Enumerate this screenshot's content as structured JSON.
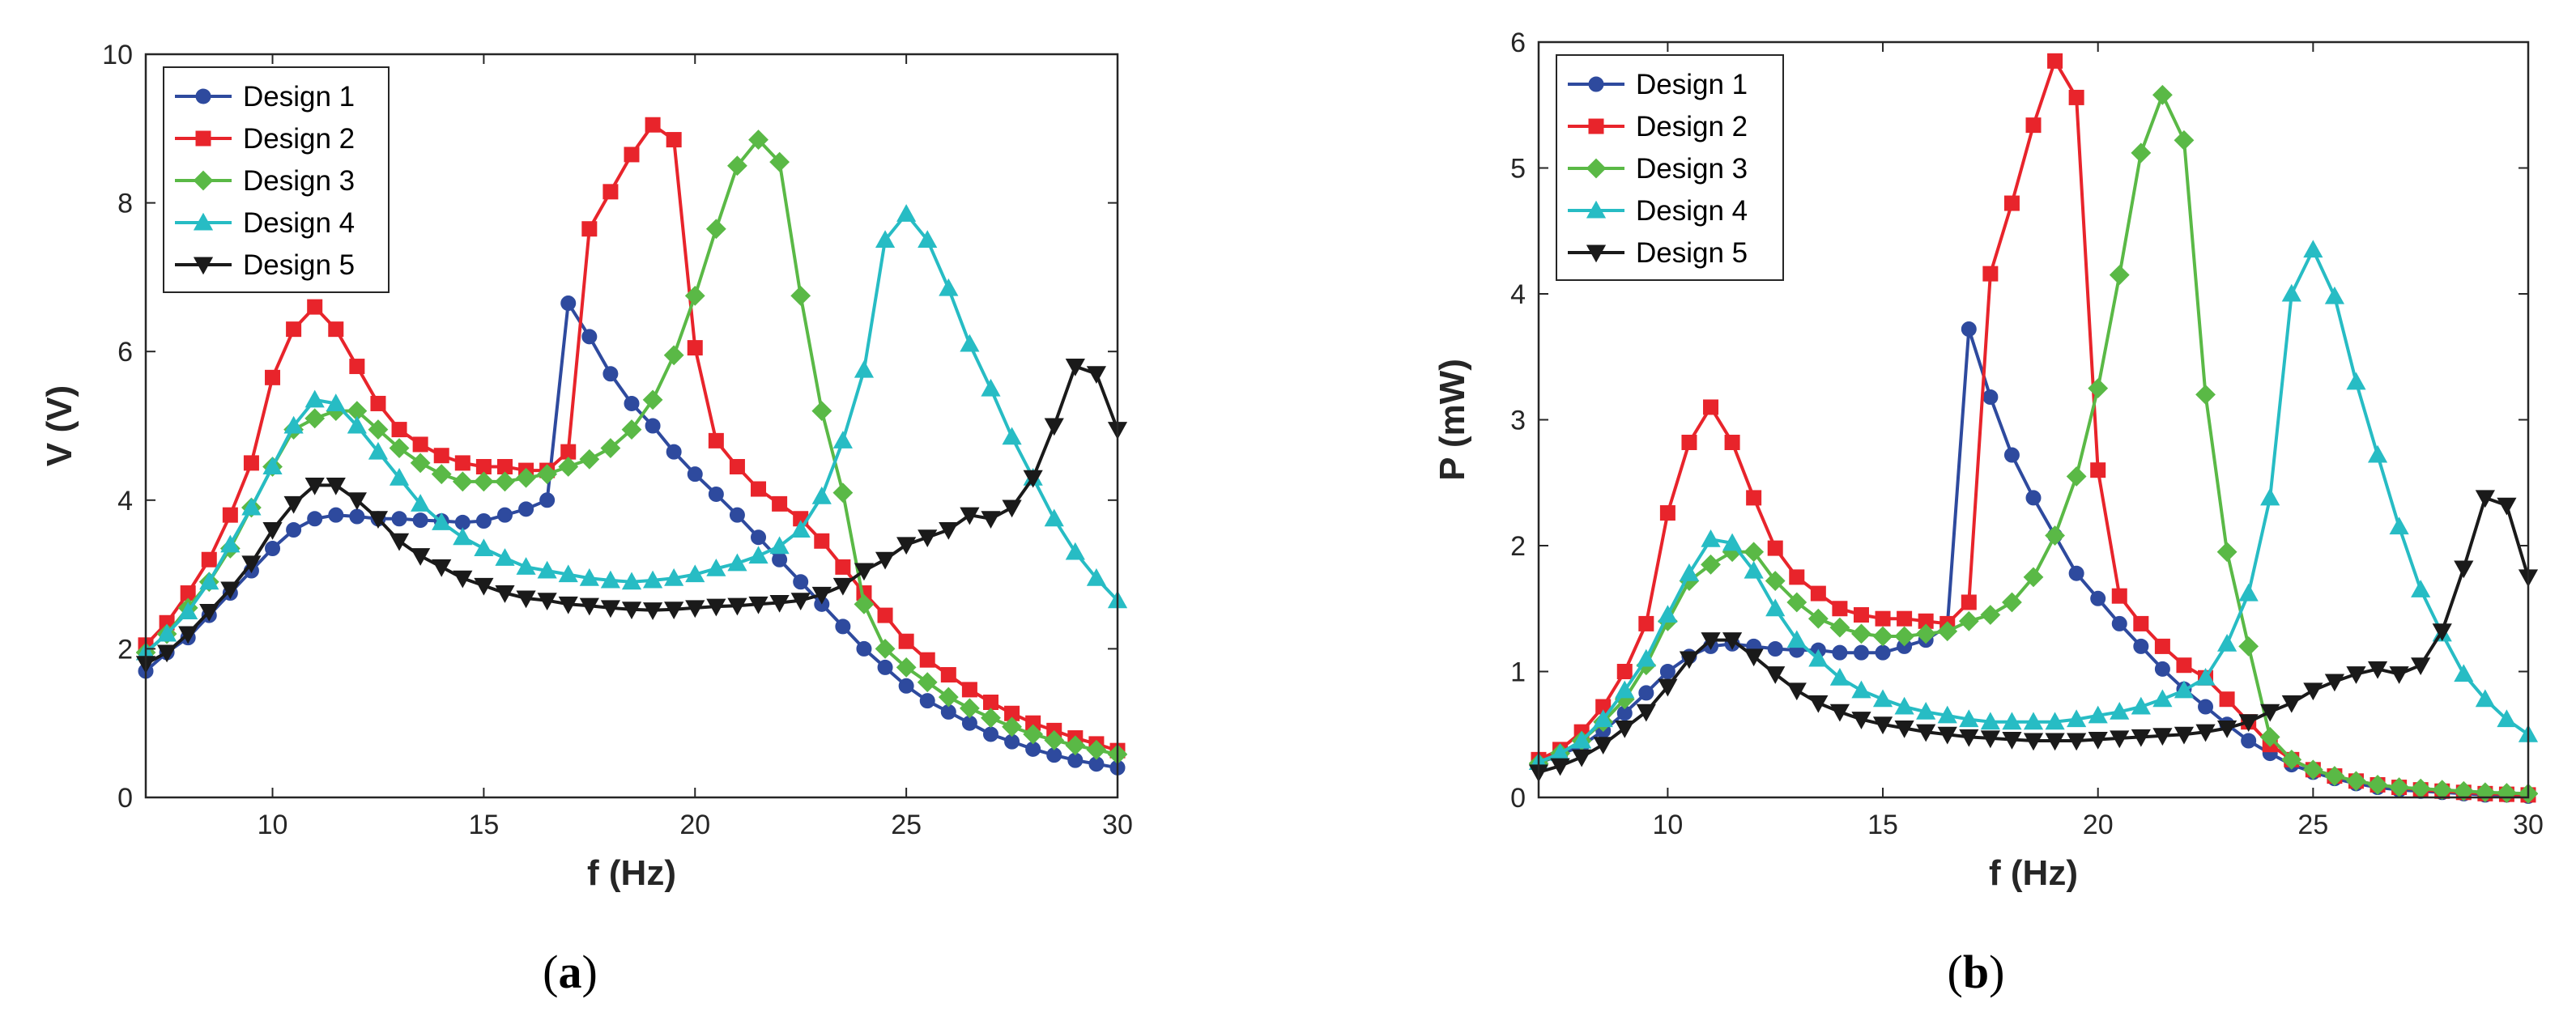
{
  "chart_data": [
    {
      "type": "line",
      "panel": "a",
      "xlabel": "f (Hz)",
      "ylabel": "V (V)",
      "xlim": [
        7,
        30
      ],
      "ylim": [
        0,
        10
      ],
      "xticks": [
        10,
        15,
        20,
        25,
        30
      ],
      "yticks": [
        0,
        2,
        4,
        6,
        8,
        10
      ],
      "legend_position": "top-left",
      "series": [
        {
          "name": "Design 1",
          "color": "#2e4a9e",
          "marker": "circle",
          "x": [
            7,
            7.5,
            8,
            8.5,
            9,
            9.5,
            10,
            10.5,
            11,
            11.5,
            12,
            12.5,
            13,
            13.5,
            14,
            14.5,
            15,
            15.5,
            16,
            16.5,
            17,
            17.5,
            18,
            18.5,
            19,
            19.5,
            20,
            20.5,
            21,
            21.5,
            22,
            22.5,
            23,
            23.5,
            24,
            24.5,
            25,
            25.5,
            26,
            26.5,
            27,
            27.5,
            28,
            28.5,
            29,
            29.5,
            30
          ],
          "y": [
            1.7,
            1.95,
            2.15,
            2.45,
            2.75,
            3.05,
            3.35,
            3.6,
            3.75,
            3.8,
            3.78,
            3.75,
            3.75,
            3.73,
            3.72,
            3.7,
            3.72,
            3.8,
            3.88,
            4.0,
            6.65,
            6.2,
            5.7,
            5.3,
            5.0,
            4.65,
            4.35,
            4.08,
            3.8,
            3.5,
            3.2,
            2.9,
            2.6,
            2.3,
            2.0,
            1.75,
            1.5,
            1.3,
            1.15,
            1.0,
            0.85,
            0.75,
            0.65,
            0.57,
            0.5,
            0.45,
            0.4
          ]
        },
        {
          "name": "Design 2",
          "color": "#e8242b",
          "marker": "square",
          "x": [
            7,
            7.5,
            8,
            8.5,
            9,
            9.5,
            10,
            10.5,
            11,
            11.5,
            12,
            12.5,
            13,
            13.5,
            14,
            14.5,
            15,
            15.5,
            16,
            16.5,
            17,
            17.5,
            18,
            18.5,
            19,
            19.5,
            20,
            20.5,
            21,
            21.5,
            22,
            22.5,
            23,
            23.5,
            24,
            24.5,
            25,
            25.5,
            26,
            26.5,
            27,
            27.5,
            28,
            28.5,
            29,
            29.5,
            30
          ],
          "y": [
            2.05,
            2.35,
            2.75,
            3.2,
            3.8,
            4.5,
            5.65,
            6.3,
            6.6,
            6.3,
            5.8,
            5.3,
            4.95,
            4.75,
            4.6,
            4.5,
            4.45,
            4.45,
            4.4,
            4.4,
            4.65,
            7.65,
            8.15,
            8.65,
            9.05,
            8.85,
            6.05,
            4.8,
            4.45,
            4.15,
            3.95,
            3.75,
            3.45,
            3.1,
            2.75,
            2.45,
            2.1,
            1.85,
            1.65,
            1.45,
            1.28,
            1.13,
            1.0,
            0.9,
            0.8,
            0.72,
            0.63
          ]
        },
        {
          "name": "Design 3",
          "color": "#5ab946",
          "marker": "diamond",
          "x": [
            7,
            7.5,
            8,
            8.5,
            9,
            9.5,
            10,
            10.5,
            11,
            11.5,
            12,
            12.5,
            13,
            13.5,
            14,
            14.5,
            15,
            15.5,
            16,
            16.5,
            17,
            17.5,
            18,
            18.5,
            19,
            19.5,
            20,
            20.5,
            21,
            21.5,
            22,
            22.5,
            23,
            23.5,
            24,
            24.5,
            25,
            25.5,
            26,
            26.5,
            27,
            27.5,
            28,
            28.5,
            29,
            29.5,
            30
          ],
          "y": [
            1.95,
            2.2,
            2.55,
            2.9,
            3.35,
            3.9,
            4.45,
            4.95,
            5.1,
            5.2,
            5.2,
            4.95,
            4.7,
            4.5,
            4.35,
            4.25,
            4.25,
            4.25,
            4.3,
            4.35,
            4.45,
            4.55,
            4.7,
            4.95,
            5.35,
            5.95,
            6.75,
            7.65,
            8.5,
            8.85,
            8.55,
            6.75,
            5.2,
            4.1,
            2.6,
            2.0,
            1.75,
            1.55,
            1.35,
            1.2,
            1.07,
            0.95,
            0.85,
            0.77,
            0.7,
            0.64,
            0.58
          ]
        },
        {
          "name": "Design 4",
          "color": "#27bcc4",
          "marker": "triangle-up",
          "x": [
            7,
            7.5,
            8,
            8.5,
            9,
            9.5,
            10,
            10.5,
            11,
            11.5,
            12,
            12.5,
            13,
            13.5,
            14,
            14.5,
            15,
            15.5,
            16,
            16.5,
            17,
            17.5,
            18,
            18.5,
            19,
            19.5,
            20,
            20.5,
            21,
            21.5,
            22,
            22.5,
            23,
            23.5,
            24,
            24.5,
            25,
            25.5,
            26,
            26.5,
            27,
            27.5,
            28,
            28.5,
            29,
            29.5,
            30
          ],
          "y": [
            1.95,
            2.2,
            2.5,
            2.9,
            3.4,
            3.9,
            4.45,
            5.0,
            5.35,
            5.3,
            5.0,
            4.65,
            4.3,
            3.95,
            3.7,
            3.5,
            3.35,
            3.22,
            3.1,
            3.05,
            3.0,
            2.95,
            2.92,
            2.9,
            2.92,
            2.95,
            3.0,
            3.08,
            3.15,
            3.25,
            3.38,
            3.6,
            4.05,
            4.8,
            5.75,
            7.5,
            7.85,
            7.5,
            6.85,
            6.1,
            5.5,
            4.85,
            4.3,
            3.75,
            3.3,
            2.95,
            2.65
          ]
        },
        {
          "name": "Design 5",
          "color": "#1a1a1a",
          "marker": "triangle-down",
          "x": [
            7,
            7.5,
            8,
            8.5,
            9,
            9.5,
            10,
            10.5,
            11,
            11.5,
            12,
            12.5,
            13,
            13.5,
            14,
            14.5,
            15,
            15.5,
            16,
            16.5,
            17,
            17.5,
            18,
            18.5,
            19,
            19.5,
            20,
            20.5,
            21,
            21.5,
            22,
            22.5,
            23,
            23.5,
            24,
            24.5,
            25,
            25.5,
            26,
            26.5,
            27,
            27.5,
            28,
            28.5,
            29,
            29.5,
            30
          ],
          "y": [
            1.8,
            1.95,
            2.2,
            2.5,
            2.8,
            3.15,
            3.6,
            3.95,
            4.2,
            4.2,
            4.0,
            3.75,
            3.45,
            3.25,
            3.1,
            2.95,
            2.85,
            2.75,
            2.68,
            2.65,
            2.6,
            2.58,
            2.55,
            2.53,
            2.52,
            2.53,
            2.55,
            2.57,
            2.58,
            2.6,
            2.62,
            2.65,
            2.73,
            2.85,
            3.05,
            3.2,
            3.4,
            3.5,
            3.6,
            3.8,
            3.75,
            3.9,
            4.3,
            5.0,
            5.8,
            5.7,
            4.95
          ]
        }
      ]
    },
    {
      "type": "line",
      "panel": "b",
      "xlabel": "f (Hz)",
      "ylabel": "P (mW)",
      "xlim": [
        7,
        30
      ],
      "ylim": [
        0,
        6
      ],
      "xticks": [
        10,
        15,
        20,
        25,
        30
      ],
      "yticks": [
        0,
        1,
        2,
        3,
        4,
        5,
        6
      ],
      "legend_position": "top-left",
      "series": [
        {
          "name": "Design 1",
          "color": "#2e4a9e",
          "marker": "circle",
          "x": [
            7,
            7.5,
            8,
            8.5,
            9,
            9.5,
            10,
            10.5,
            11,
            11.5,
            12,
            12.5,
            13,
            13.5,
            14,
            14.5,
            15,
            15.5,
            16,
            16.5,
            17,
            17.5,
            18,
            18.5,
            19,
            19.5,
            20,
            20.5,
            21,
            21.5,
            22,
            22.5,
            23,
            23.5,
            24,
            24.5,
            25,
            25.5,
            26,
            26.5,
            27,
            27.5,
            28,
            28.5,
            29,
            29.5,
            30
          ],
          "y": [
            0.27,
            0.34,
            0.41,
            0.53,
            0.67,
            0.83,
            1.0,
            1.12,
            1.2,
            1.22,
            1.2,
            1.18,
            1.17,
            1.17,
            1.15,
            1.15,
            1.15,
            1.2,
            1.25,
            1.36,
            3.72,
            3.18,
            2.72,
            2.38,
            2.08,
            1.78,
            1.58,
            1.38,
            1.2,
            1.02,
            0.86,
            0.72,
            0.58,
            0.45,
            0.35,
            0.26,
            0.2,
            0.15,
            0.11,
            0.08,
            0.06,
            0.05,
            0.04,
            0.03,
            0.02,
            0.02,
            0.01
          ]
        },
        {
          "name": "Design 2",
          "color": "#e8242b",
          "marker": "square",
          "x": [
            7,
            7.5,
            8,
            8.5,
            9,
            9.5,
            10,
            10.5,
            11,
            11.5,
            12,
            12.5,
            13,
            13.5,
            14,
            14.5,
            15,
            15.5,
            16,
            16.5,
            17,
            17.5,
            18,
            18.5,
            19,
            19.5,
            20,
            20.5,
            21,
            21.5,
            22,
            22.5,
            23,
            23.5,
            24,
            24.5,
            25,
            25.5,
            26,
            26.5,
            27,
            27.5,
            28,
            28.5,
            29,
            29.5,
            30
          ],
          "y": [
            0.3,
            0.38,
            0.52,
            0.72,
            1.0,
            1.38,
            2.26,
            2.82,
            3.1,
            2.82,
            2.38,
            1.98,
            1.75,
            1.62,
            1.5,
            1.45,
            1.42,
            1.42,
            1.4,
            1.38,
            1.55,
            4.16,
            4.72,
            5.34,
            5.85,
            5.56,
            2.6,
            1.6,
            1.38,
            1.2,
            1.05,
            0.95,
            0.78,
            0.6,
            0.42,
            0.3,
            0.22,
            0.17,
            0.13,
            0.1,
            0.08,
            0.06,
            0.05,
            0.04,
            0.03,
            0.025,
            0.02
          ]
        },
        {
          "name": "Design 3",
          "color": "#5ab946",
          "marker": "diamond",
          "x": [
            7,
            7.5,
            8,
            8.5,
            9,
            9.5,
            10,
            10.5,
            11,
            11.5,
            12,
            12.5,
            13,
            13.5,
            14,
            14.5,
            15,
            15.5,
            16,
            16.5,
            17,
            17.5,
            18,
            18.5,
            19,
            19.5,
            20,
            20.5,
            21,
            21.5,
            22,
            22.5,
            23,
            23.5,
            24,
            24.5,
            25,
            25.5,
            26,
            26.5,
            27,
            27.5,
            28,
            28.5,
            29,
            29.5,
            30
          ],
          "y": [
            0.27,
            0.35,
            0.45,
            0.6,
            0.78,
            1.05,
            1.4,
            1.72,
            1.85,
            1.95,
            1.95,
            1.72,
            1.55,
            1.42,
            1.35,
            1.3,
            1.28,
            1.28,
            1.3,
            1.32,
            1.4,
            1.45,
            1.55,
            1.75,
            2.08,
            2.55,
            3.25,
            4.15,
            5.12,
            5.58,
            5.22,
            3.2,
            1.95,
            1.2,
            0.48,
            0.3,
            0.22,
            0.17,
            0.13,
            0.1,
            0.08,
            0.07,
            0.06,
            0.05,
            0.04,
            0.035,
            0.03
          ]
        },
        {
          "name": "Design 4",
          "color": "#27bcc4",
          "marker": "triangle-up",
          "x": [
            7,
            7.5,
            8,
            8.5,
            9,
            9.5,
            10,
            10.5,
            11,
            11.5,
            12,
            12.5,
            13,
            13.5,
            14,
            14.5,
            15,
            15.5,
            16,
            16.5,
            17,
            17.5,
            18,
            18.5,
            19,
            19.5,
            20,
            20.5,
            21,
            21.5,
            22,
            22.5,
            23,
            23.5,
            24,
            24.5,
            25,
            25.5,
            26,
            26.5,
            27,
            27.5,
            28,
            28.5,
            29,
            29.5,
            30
          ],
          "y": [
            0.28,
            0.35,
            0.45,
            0.62,
            0.85,
            1.1,
            1.45,
            1.78,
            2.05,
            2.02,
            1.8,
            1.5,
            1.25,
            1.1,
            0.95,
            0.85,
            0.78,
            0.72,
            0.68,
            0.65,
            0.62,
            0.6,
            0.6,
            0.6,
            0.6,
            0.62,
            0.65,
            0.68,
            0.72,
            0.78,
            0.85,
            0.95,
            1.22,
            1.62,
            2.38,
            4.0,
            4.35,
            3.98,
            3.3,
            2.72,
            2.15,
            1.65,
            1.3,
            0.98,
            0.78,
            0.62,
            0.5
          ]
        },
        {
          "name": "Design 5",
          "color": "#1a1a1a",
          "marker": "triangle-down",
          "x": [
            7,
            7.5,
            8,
            8.5,
            9,
            9.5,
            10,
            10.5,
            11,
            11.5,
            12,
            12.5,
            13,
            13.5,
            14,
            14.5,
            15,
            15.5,
            16,
            16.5,
            17,
            17.5,
            18,
            18.5,
            19,
            19.5,
            20,
            20.5,
            21,
            21.5,
            22,
            22.5,
            23,
            23.5,
            24,
            24.5,
            25,
            25.5,
            26,
            26.5,
            27,
            27.5,
            28,
            28.5,
            29,
            29.5,
            30
          ],
          "y": [
            0.2,
            0.25,
            0.32,
            0.42,
            0.55,
            0.68,
            0.88,
            1.1,
            1.25,
            1.25,
            1.12,
            0.98,
            0.85,
            0.75,
            0.68,
            0.62,
            0.58,
            0.55,
            0.52,
            0.5,
            0.48,
            0.47,
            0.46,
            0.45,
            0.45,
            0.45,
            0.46,
            0.47,
            0.48,
            0.49,
            0.5,
            0.52,
            0.55,
            0.6,
            0.68,
            0.75,
            0.85,
            0.92,
            0.98,
            1.02,
            0.98,
            1.05,
            1.32,
            1.82,
            2.38,
            2.32,
            1.75
          ]
        }
      ]
    }
  ],
  "captions": {
    "a": "(a)",
    "b": "(b)"
  }
}
